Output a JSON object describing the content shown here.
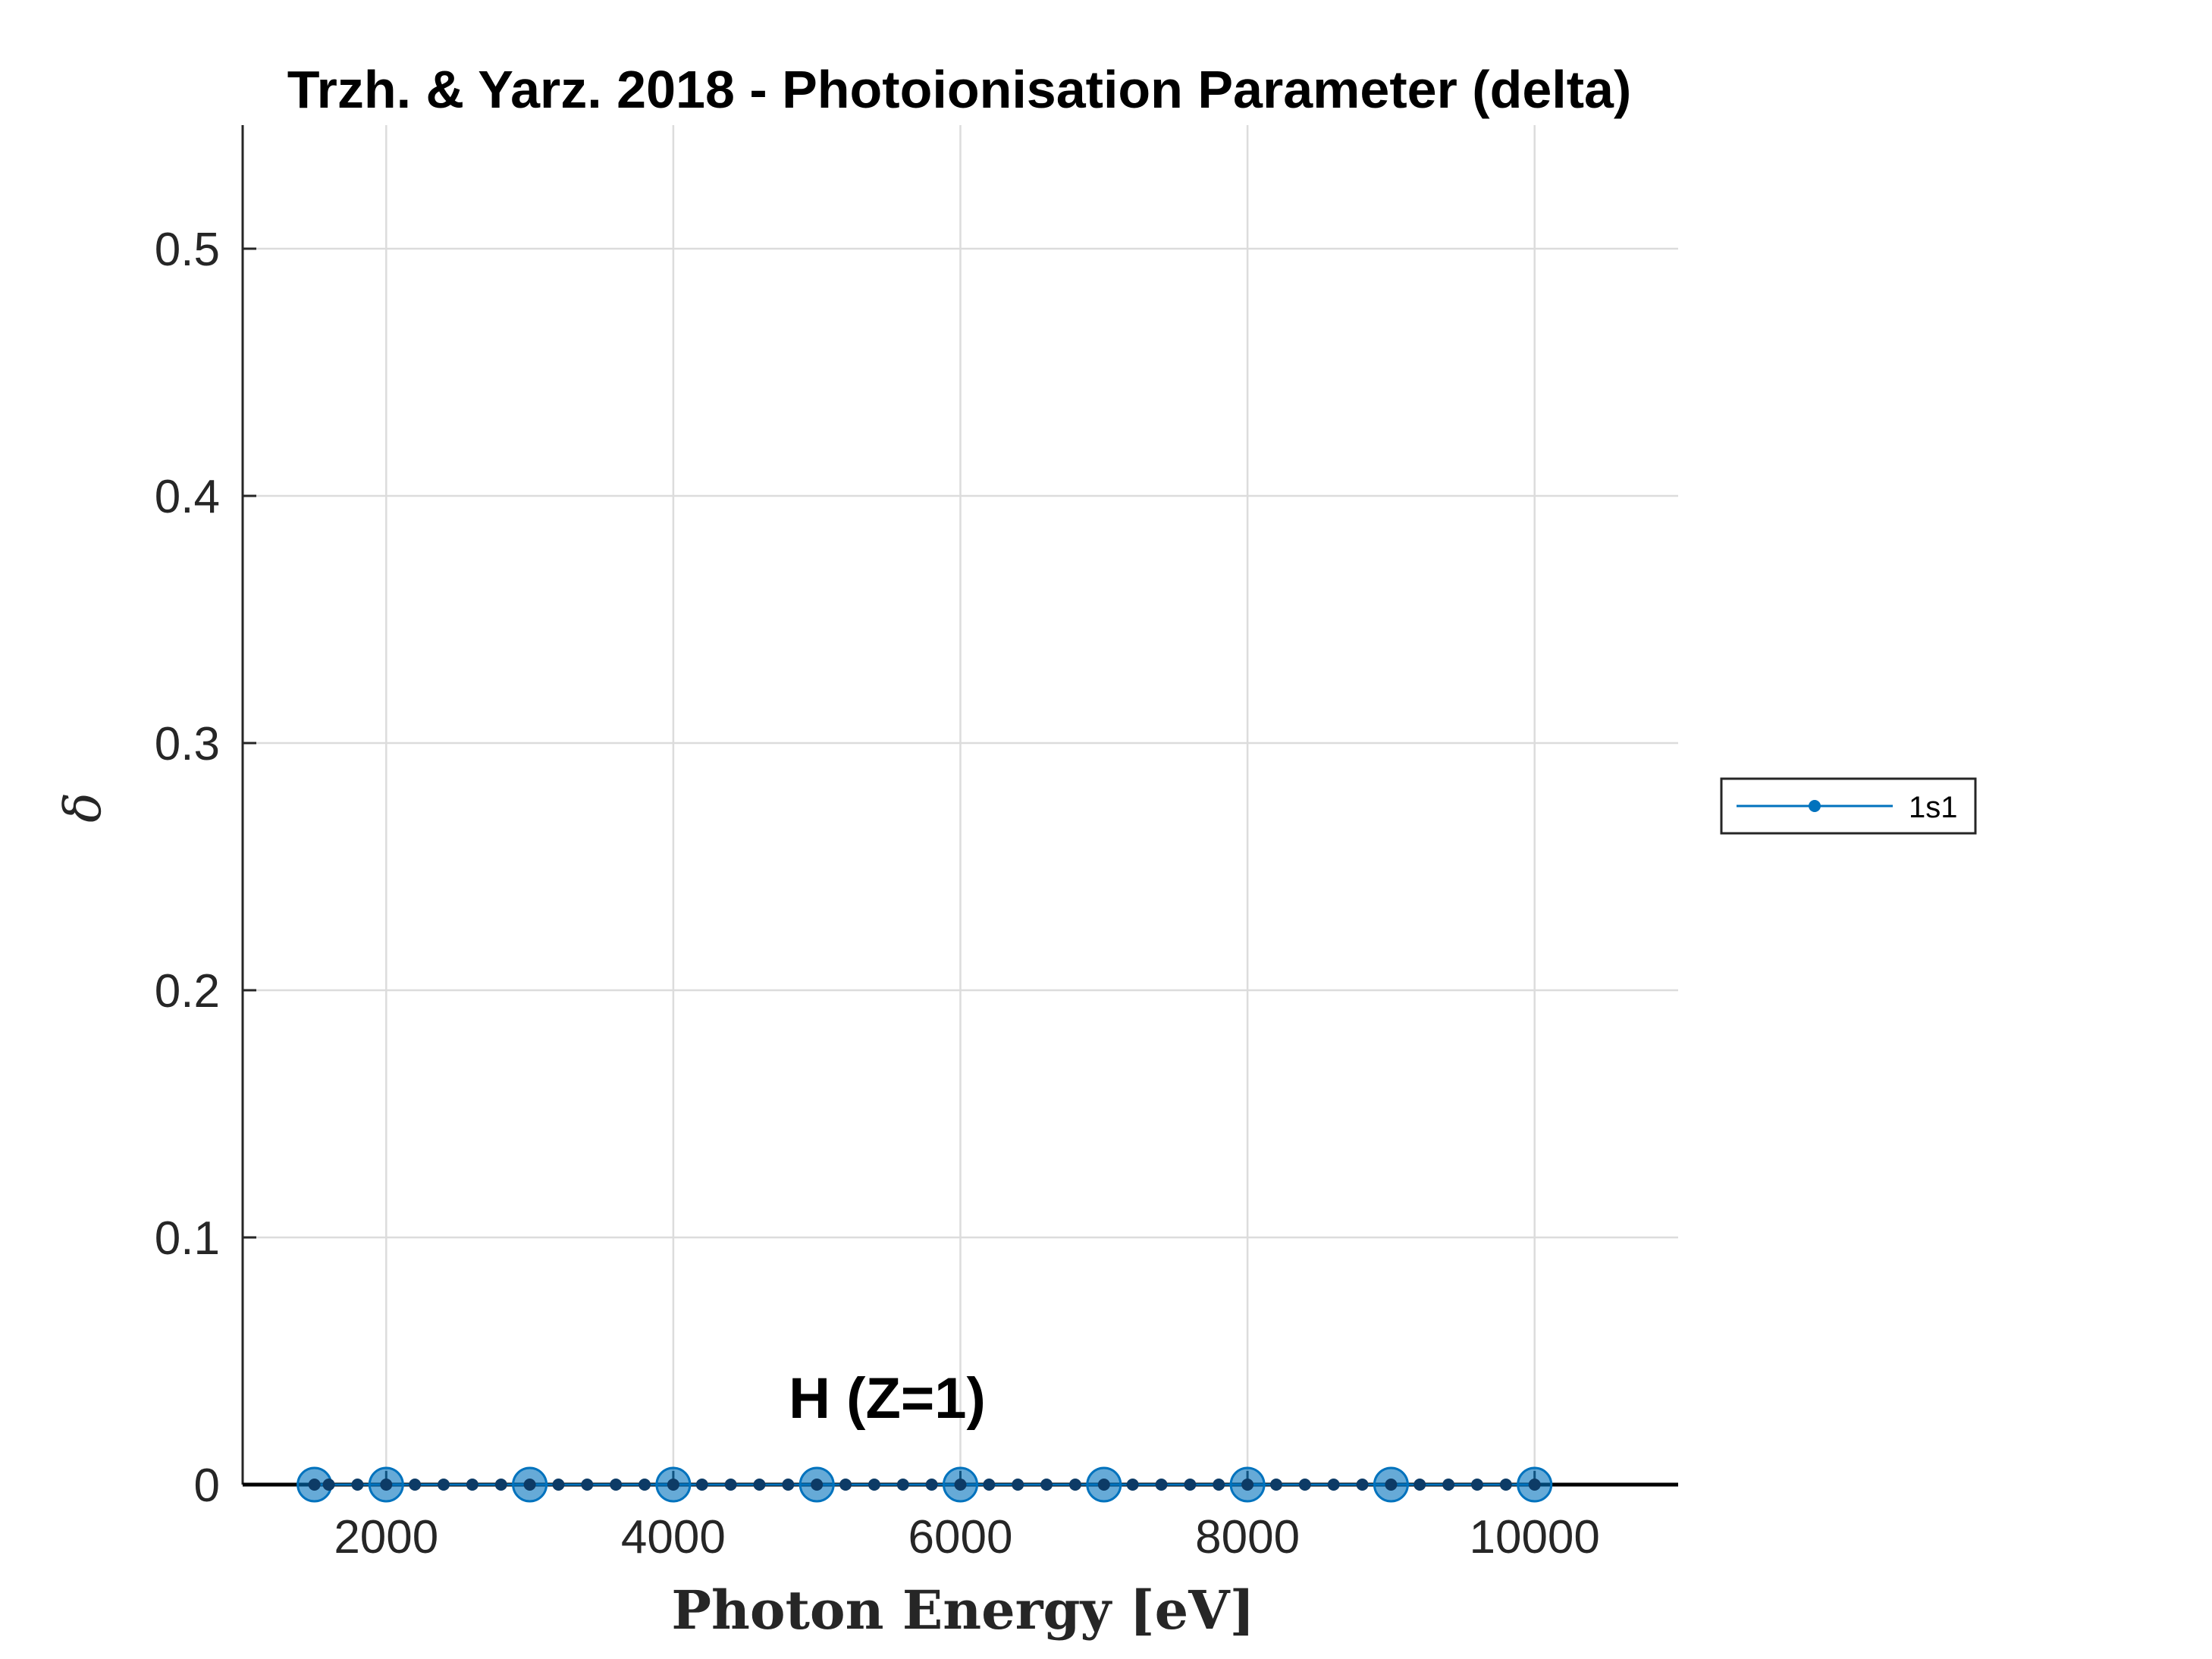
{
  "chart_data": {
    "type": "line",
    "title": "Trzh. & Yarz. 2018 - Photoionisation Parameter (delta)",
    "xlabel": "Photon Energy [eV]",
    "ylabel": "δ",
    "xlim": [
      1000,
      11000
    ],
    "ylim": [
      0,
      0.55
    ],
    "x_ticks": [
      2000,
      4000,
      6000,
      8000,
      10000
    ],
    "y_ticks": [
      0,
      0.1,
      0.2,
      0.3,
      0.4,
      0.5
    ],
    "y_tick_labels": [
      "0",
      "0.1",
      "0.2",
      "0.3",
      "0.4",
      "0.5"
    ],
    "grid": true,
    "legend_position": "outside-right",
    "annotation": "H (Z=1)",
    "series": [
      {
        "name": "1s1",
        "color": "#0072BD",
        "x": [
          1500,
          1600,
          1800,
          2000,
          2200,
          2400,
          2600,
          2800,
          3000,
          3200,
          3400,
          3600,
          3800,
          4000,
          4200,
          4400,
          4600,
          4800,
          5000,
          5200,
          5400,
          5600,
          5800,
          6000,
          6200,
          6400,
          6600,
          6800,
          7000,
          7200,
          7400,
          7600,
          7800,
          8000,
          8200,
          8400,
          8600,
          8800,
          9000,
          9200,
          9400,
          9600,
          9800,
          10000
        ],
        "y": [
          0,
          0,
          0,
          0,
          0,
          0,
          0,
          0,
          0,
          0,
          0,
          0,
          0,
          0,
          0,
          0,
          0,
          0,
          0,
          0,
          0,
          0,
          0,
          0,
          0,
          0,
          0,
          0,
          0,
          0,
          0,
          0,
          0,
          0,
          0,
          0,
          0,
          0,
          0,
          0,
          0,
          0,
          0,
          0
        ]
      }
    ],
    "reference_points": {
      "color": "#0072BD",
      "x": [
        1500,
        2000,
        3000,
        4000,
        5000,
        6000,
        7000,
        8000,
        9000,
        10000
      ],
      "y": [
        0,
        0,
        0,
        0,
        0,
        0,
        0,
        0,
        0,
        0
      ]
    }
  }
}
